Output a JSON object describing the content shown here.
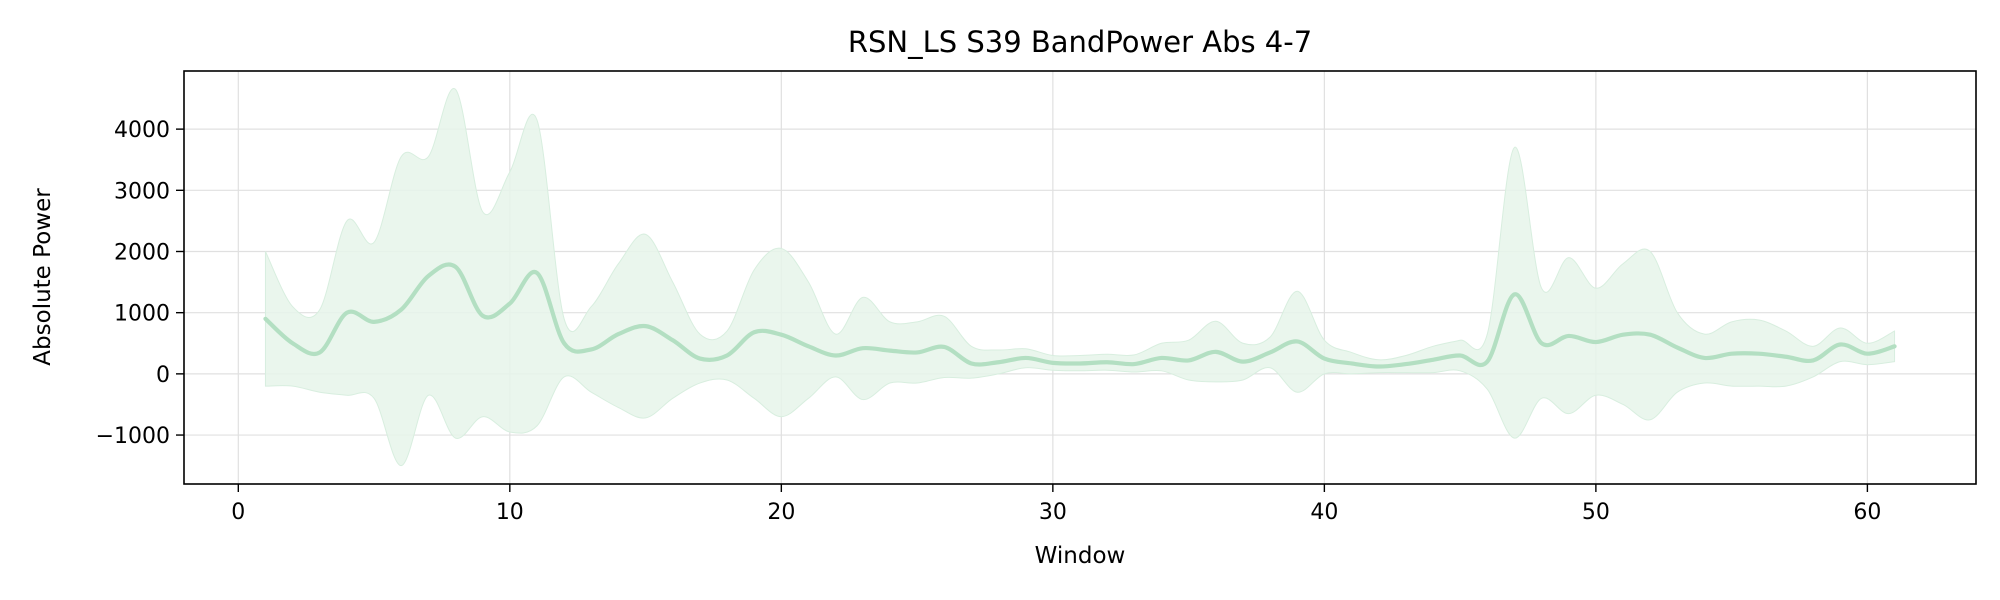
{
  "chart_data": {
    "type": "line",
    "title": "RSN_LS S39 BandPower Abs 4-7",
    "xlabel": "Window",
    "ylabel": "Absolute Power",
    "xlim": [
      -2,
      64
    ],
    "ylim": [
      -1800,
      4950
    ],
    "xticks": [
      0,
      10,
      20,
      30,
      40,
      50,
      60
    ],
    "yticks": [
      -1000,
      0,
      1000,
      2000,
      3000,
      4000
    ],
    "ytick_labels": [
      "−1000",
      "0",
      "1000",
      "2000",
      "3000",
      "4000"
    ],
    "grid": true,
    "legend": "none",
    "colors": {
      "line": "#b3dfc2",
      "band": "#e6f4ea",
      "grid": "#e0e0e0"
    },
    "series": [
      {
        "x": [
          1,
          2,
          3,
          4,
          5,
          6,
          7,
          8,
          9,
          10,
          11,
          12,
          13,
          14,
          15,
          16,
          17,
          18,
          19,
          20,
          21,
          22,
          23,
          24,
          25,
          26,
          27,
          28,
          29,
          30,
          31,
          32,
          33,
          34,
          35,
          36,
          37,
          38,
          39,
          40,
          41,
          42,
          43,
          44,
          45,
          46,
          47,
          48,
          49,
          50,
          51,
          52,
          53,
          54,
          55,
          56,
          57,
          58,
          59,
          60,
          61
        ],
        "mean": [
          900,
          500,
          350,
          1000,
          850,
          1050,
          1600,
          1750,
          950,
          1150,
          1650,
          500,
          400,
          650,
          780,
          550,
          250,
          300,
          680,
          640,
          450,
          300,
          420,
          380,
          350,
          440,
          170,
          190,
          260,
          180,
          170,
          190,
          160,
          260,
          220,
          360,
          200,
          350,
          530,
          250,
          170,
          120,
          160,
          230,
          300,
          200,
          1300,
          500,
          620,
          520,
          640,
          640,
          430,
          260,
          330,
          330,
          280,
          220,
          480,
          330,
          450
        ],
        "upper": [
          2000,
          1100,
          1050,
          2500,
          2150,
          3550,
          3550,
          4650,
          2650,
          3300,
          4150,
          900,
          1100,
          1800,
          2280,
          1500,
          650,
          700,
          1700,
          2050,
          1500,
          650,
          1250,
          850,
          850,
          940,
          450,
          390,
          410,
          300,
          300,
          320,
          310,
          500,
          550,
          860,
          500,
          600,
          1350,
          550,
          350,
          230,
          300,
          450,
          550,
          650,
          3700,
          1400,
          1900,
          1400,
          1800,
          2000,
          1000,
          650,
          850,
          880,
          700,
          450,
          750,
          500,
          700
        ],
        "lower": [
          -200,
          -200,
          -300,
          -350,
          -400,
          -1500,
          -350,
          -1050,
          -700,
          -950,
          -850,
          -50,
          -300,
          -550,
          -720,
          -400,
          -150,
          -100,
          -400,
          -700,
          -400,
          -50,
          -420,
          -150,
          -150,
          -60,
          -70,
          0,
          100,
          60,
          50,
          60,
          30,
          50,
          -100,
          -130,
          -100,
          100,
          -300,
          0,
          0,
          20,
          20,
          20,
          50,
          -250,
          -1050,
          -400,
          -650,
          -350,
          -500,
          -750,
          -300,
          -150,
          -200,
          -200,
          -200,
          -50,
          200,
          150,
          200
        ]
      }
    ]
  }
}
